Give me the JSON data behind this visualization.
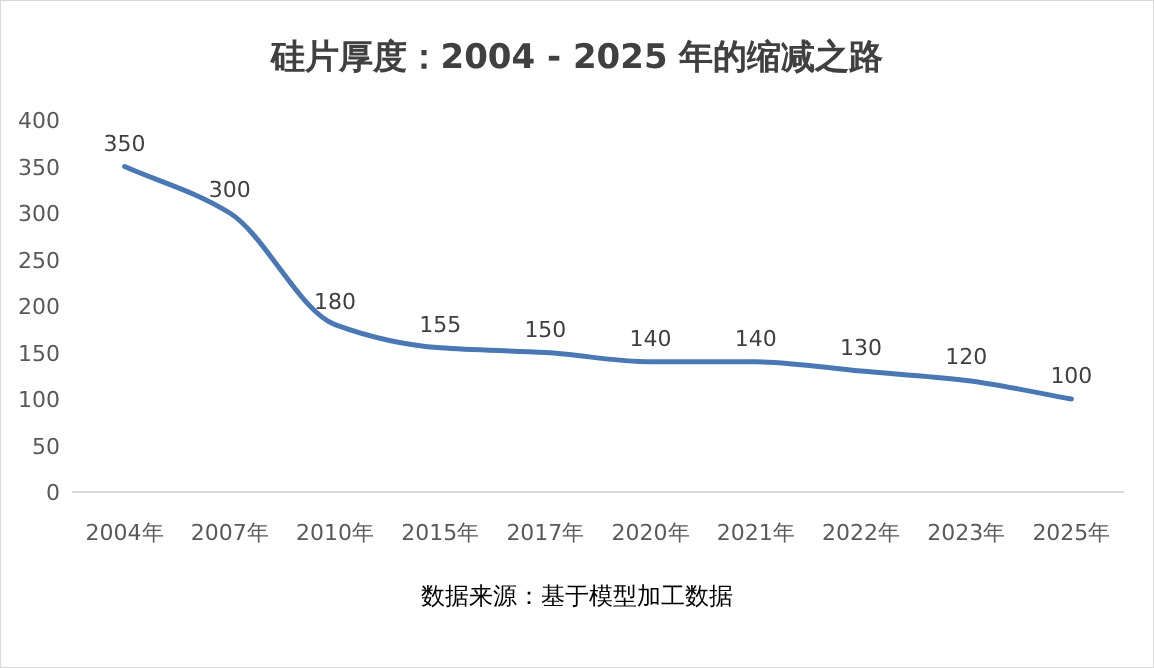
{
  "chart_data": {
    "type": "line",
    "title": "硅片厚度：2004 - 2025 年的缩减之路",
    "categories": [
      "2004年",
      "2007年",
      "2010年",
      "2015年",
      "2017年",
      "2020年",
      "2021年",
      "2022年",
      "2023年",
      "2025年"
    ],
    "values": [
      350,
      300,
      180,
      155,
      150,
      140,
      140,
      130,
      120,
      100
    ],
    "color": "#4a78b4",
    "ylim": [
      0,
      400
    ],
    "yticks": [
      0,
      50,
      100,
      150,
      200,
      250,
      300,
      350,
      400
    ],
    "data_labels": true,
    "annotations": [
      "数据来源：基于模型加工数据"
    ]
  }
}
